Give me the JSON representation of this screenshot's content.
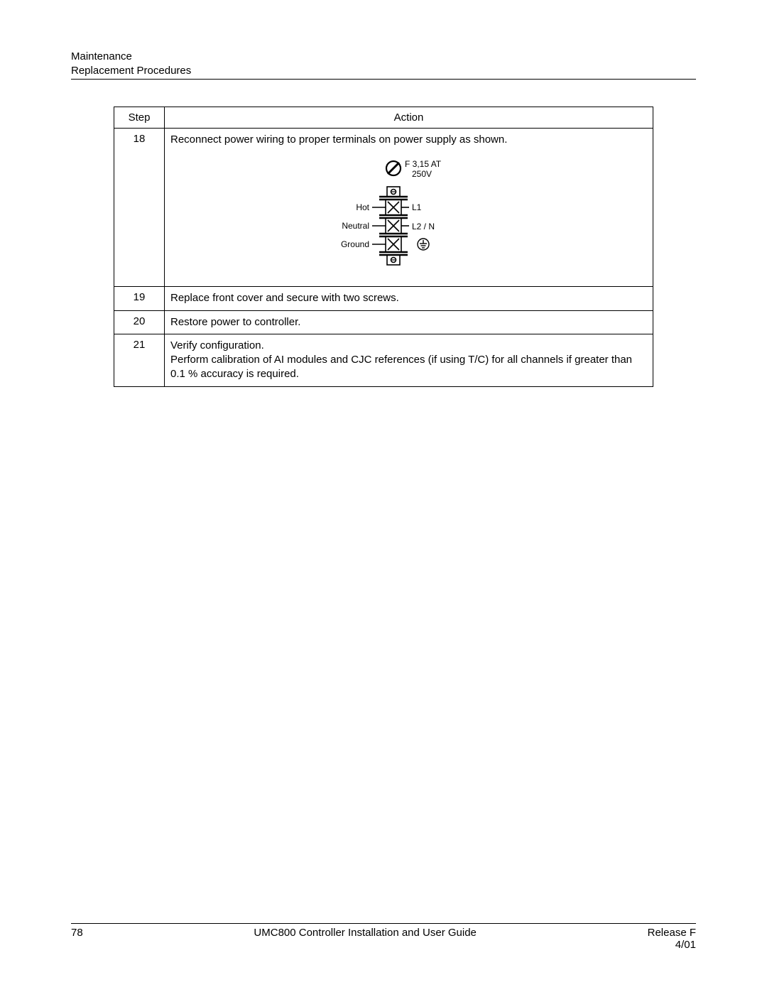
{
  "header": {
    "line1": "Maintenance",
    "line2": "Replacement Procedures"
  },
  "table": {
    "headers": {
      "step": "Step",
      "action": "Action"
    },
    "rows": [
      {
        "step": "18",
        "action_intro": "Reconnect power wiring to proper terminals on power supply as shown.",
        "diagram": {
          "fuse_label_line1": "F 3,15 AT",
          "fuse_label_line2": "250V",
          "left_labels": [
            "Hot",
            "Neutral",
            "Ground"
          ],
          "right_labels": [
            "L1",
            "L2 / N",
            ""
          ],
          "colors": {
            "stroke": "#000000",
            "fill_bg": "#ffffff"
          },
          "stroke_width": 1.6,
          "label_fontsize": 12
        }
      },
      {
        "step": "19",
        "action": "Replace front cover and secure with two screws."
      },
      {
        "step": "20",
        "action": "Restore power to controller."
      },
      {
        "step": "21",
        "action": "Verify configuration.\nPerform calibration of AI modules and CJC references (if using T/C) for all channels if greater than 0.1 % accuracy is required."
      }
    ]
  },
  "footer": {
    "page_number": "78",
    "title": "UMC800 Controller Installation and User Guide",
    "release": "Release F",
    "date": "4/01"
  }
}
